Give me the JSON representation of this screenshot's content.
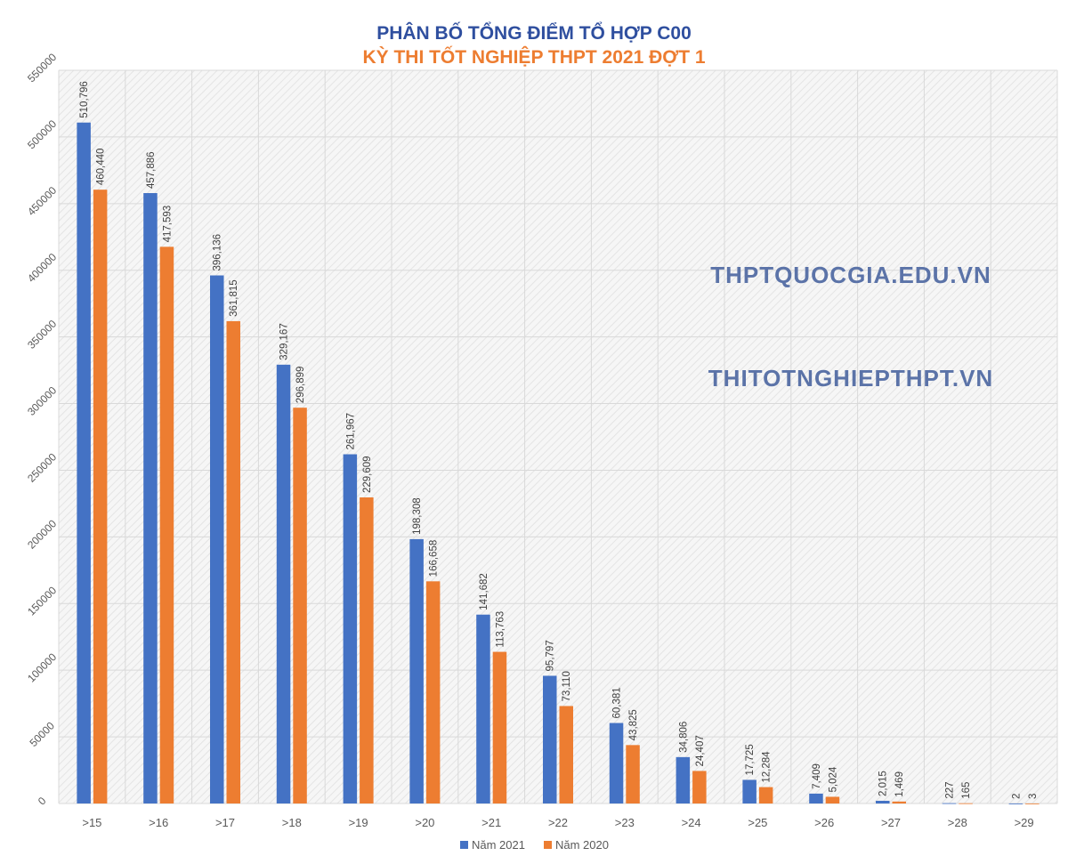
{
  "header": {
    "title": "PHÂN BỐ TỔNG ĐIỂM TỔ HỢP C00",
    "subtitle": "KỲ THI TỐT NGHIỆP THPT 2021 ĐỢT 1"
  },
  "watermarks": [
    "THPTQUOCGIA.EDU.VN",
    "THITOTNGHIEPTHPT.VN"
  ],
  "colors": {
    "title": "#2F4F9F",
    "subtitle": "#ED7D31",
    "watermark": "#5B73A8",
    "series_2021": "#4472C4",
    "series_2020": "#ED7D31"
  },
  "chart_data": {
    "type": "bar",
    "title": "PHÂN BỐ TỔNG ĐIỂM TỔ HỢP C00",
    "subtitle": "KỲ THI TỐT NGHIỆP THPT 2021 ĐỢT 1",
    "categories": [
      ">15",
      ">16",
      ">17",
      ">18",
      ">19",
      ">20",
      ">21",
      ">22",
      ">23",
      ">24",
      ">25",
      ">26",
      ">27",
      ">28",
      ">29"
    ],
    "series": [
      {
        "name": "Năm 2021",
        "values": [
          510796,
          457886,
          396136,
          329167,
          261967,
          198308,
          141682,
          95797,
          60381,
          34806,
          17725,
          7409,
          2015,
          227,
          2
        ],
        "labels": [
          "510,796",
          "457,886",
          "396,136",
          "329,167",
          "261,967",
          "198,308",
          "141,682",
          "95,797",
          "60,381",
          "34,806",
          "17,725",
          "7,409",
          "2,015",
          "227",
          "2"
        ]
      },
      {
        "name": "Năm 2020",
        "values": [
          460440,
          417593,
          361815,
          296899,
          229609,
          166658,
          113763,
          73110,
          43825,
          24407,
          12284,
          5024,
          1469,
          165,
          3
        ],
        "labels": [
          "460,440",
          "417,593",
          "361,815",
          "296,899",
          "229,609",
          "166,658",
          "113,763",
          "73,110",
          "43,825",
          "24,407",
          "12,284",
          "5,024",
          "1,469",
          "165",
          "3"
        ]
      }
    ],
    "yticks": [
      "0",
      "50000",
      "100000",
      "150000",
      "200000",
      "250000",
      "300000",
      "350000",
      "400000",
      "450000",
      "500000",
      "550000"
    ],
    "ylim": [
      0,
      550000
    ],
    "grid": true,
    "legend": "bottom-center"
  }
}
